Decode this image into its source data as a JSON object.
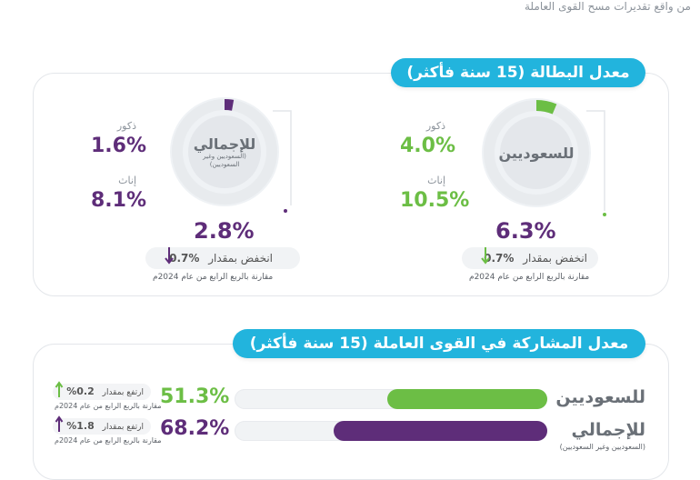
{
  "source_text": "من واقع تقديرات مسح القوى العاملة",
  "unemployment": {
    "title": "معدل البطالة (15 سنة فأكثر)",
    "saudi": {
      "center_label": "للسعوديين",
      "males_label": "ذكور",
      "males_value": "4.0%",
      "females_label": "إناث",
      "females_value": "10.5%",
      "total_value": "6.3%",
      "change_label": "انخفض بمقدار",
      "change_value": "%0.7",
      "comparison": "مقارنة بالربع الرابع من عام 2024م",
      "ring_fraction": 0.063,
      "color": "#6cbe45"
    },
    "overall": {
      "center_label": "للإجمالي",
      "center_sub": "(السعوديين وغير السعوديين)",
      "males_label": "ذكور",
      "males_value": "1.6%",
      "females_label": "إناث",
      "females_value": "8.1%",
      "total_value": "2.8%",
      "change_label": "انخفض بمقدار",
      "change_value": "%0.7",
      "comparison": "مقارنة بالربع الرابع من عام 2024م",
      "ring_fraction": 0.028,
      "color": "#5e2d79"
    }
  },
  "participation": {
    "title": "معدل المشاركة في القوى العاملة (15 سنة فأكثر)",
    "rows": [
      {
        "label": "للسعوديين",
        "sublabel": "",
        "value": "51.3%",
        "fraction": 0.513,
        "color": "#6cbe45",
        "change_label": "ارتفع بمقدار",
        "change_value": "0.2%",
        "comparison": "مقارنة بالربع الرابع من عام 2024م"
      },
      {
        "label": "للإجمالي",
        "sublabel": "(السعوديين وغير السعوديين)",
        "value": "68.2%",
        "fraction": 0.682,
        "color": "#5e2d79",
        "change_label": "ارتفع بمقدار",
        "change_value": "1.8%",
        "comparison": "مقارنة بالربع الرابع من عام 2024م"
      }
    ]
  }
}
